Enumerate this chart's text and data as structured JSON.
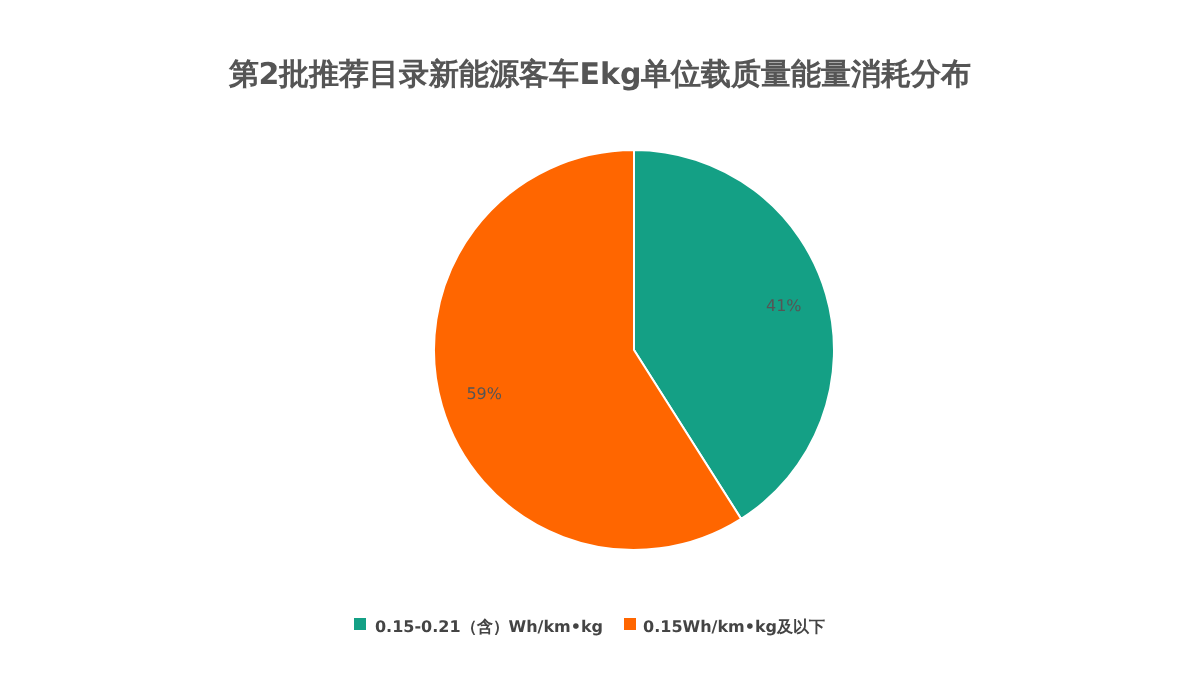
{
  "chart_data": {
    "type": "pie",
    "title": "第2批推荐目录新能源客车Ekg单位载质量能量消耗分布",
    "categories": [
      "0.15-0.21（含）Wh/km•kg",
      "0.15Wh/km•kg及以下"
    ],
    "values": [
      41,
      59
    ],
    "colors": [
      "#14a085",
      "#ff6600"
    ],
    "value_labels": [
      "41%",
      "59%"
    ],
    "legend": "bottom"
  }
}
